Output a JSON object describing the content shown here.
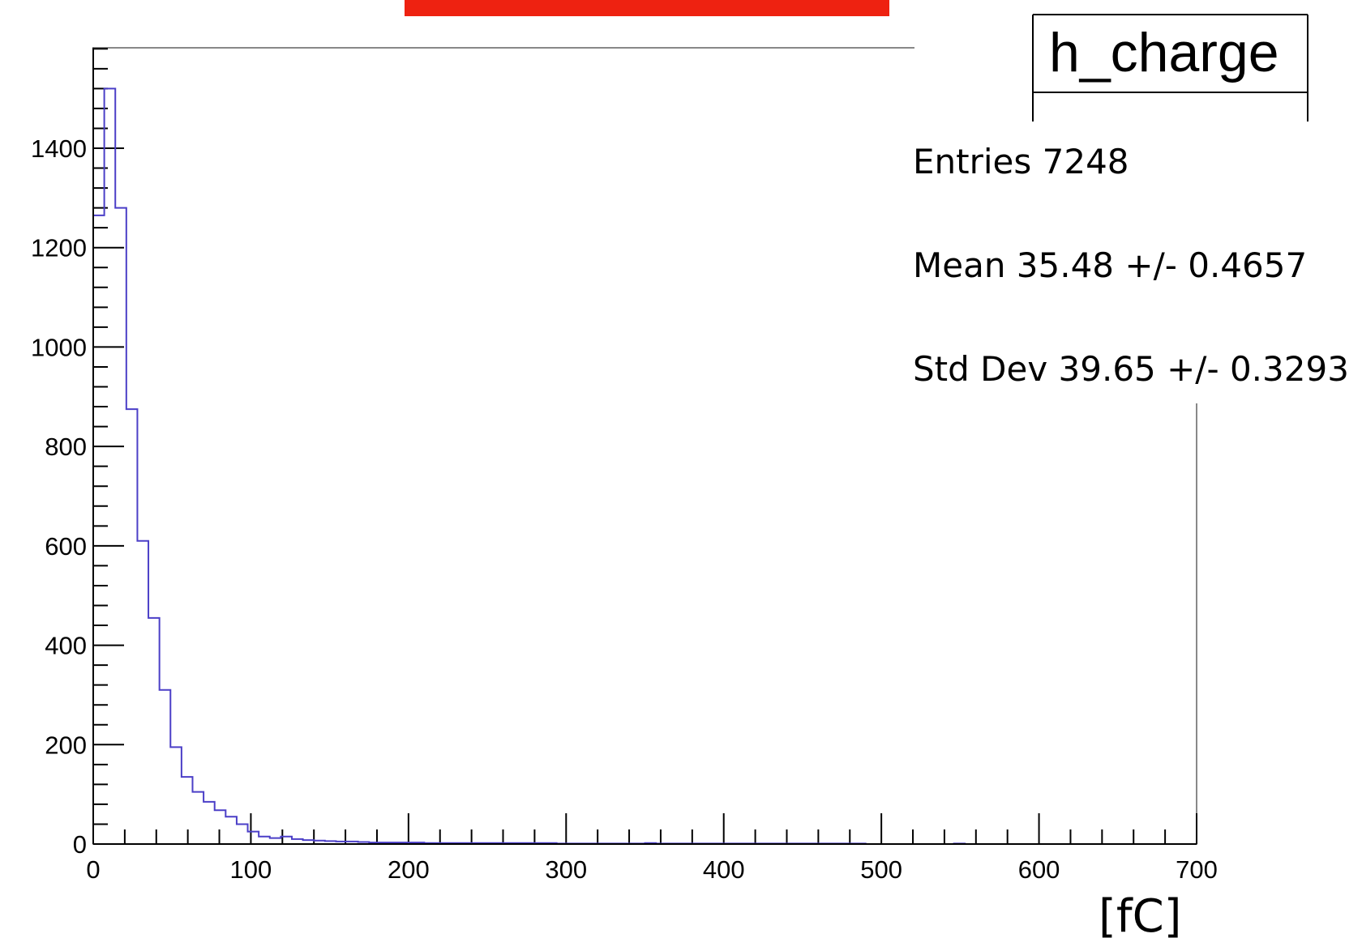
{
  "chart_data": {
    "type": "bar",
    "histogram_name": "h_charge",
    "xlabel": "[fC]",
    "ylabel": "",
    "xlim": [
      0,
      700
    ],
    "ylim": [
      0,
      1600
    ],
    "x_ticks": [
      0,
      100,
      200,
      300,
      400,
      500,
      600,
      700
    ],
    "y_ticks": [
      0,
      200,
      400,
      600,
      800,
      1000,
      1200,
      1400
    ],
    "bin_width": 7,
    "series": [
      {
        "values": [
          1265,
          1520,
          1280,
          875,
          610,
          455,
          310,
          195,
          135,
          105,
          85,
          68,
          55,
          40,
          25,
          15,
          12,
          15,
          10,
          8,
          7,
          6,
          5,
          5,
          4,
          3,
          3,
          3,
          3,
          3,
          2,
          2,
          2,
          2,
          2,
          2,
          2,
          2,
          2,
          2,
          2,
          2,
          1,
          1,
          1,
          1,
          1,
          1,
          1,
          1,
          2,
          1,
          1,
          1,
          1,
          1,
          1,
          1,
          1,
          1,
          1,
          1,
          1,
          1,
          1,
          1,
          1,
          1,
          1,
          1,
          0,
          0,
          0,
          0,
          0,
          0,
          0,
          0,
          1,
          0,
          0,
          0,
          0,
          0,
          0,
          0,
          0,
          0,
          0,
          0,
          0,
          0,
          0,
          0,
          0,
          0,
          0,
          0,
          0,
          0
        ]
      }
    ],
    "stats": {
      "title": "h_charge",
      "entries": "Entries  7248",
      "mean": "Mean 35.48 +/- 0.4657",
      "std_dev": "Std Dev 39.65 +/- 0.3293"
    },
    "colors": {
      "histogram_line": "#4b3fc7",
      "title_banner": "#ee2211",
      "axis": "#000000",
      "frame": "#888888"
    },
    "grid": false,
    "legend": "top-right"
  }
}
